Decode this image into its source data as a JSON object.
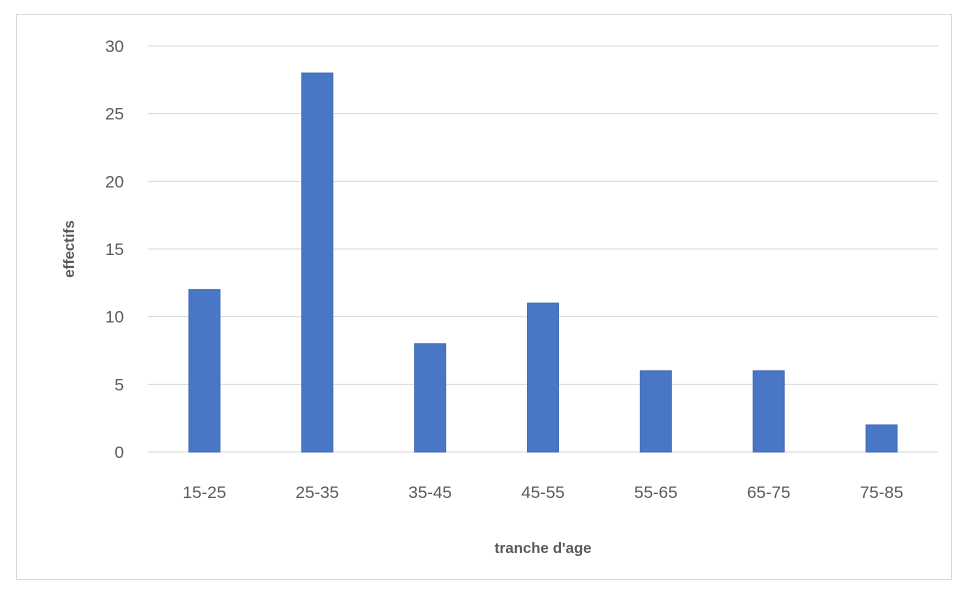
{
  "chart_data": {
    "type": "bar",
    "title": "",
    "xlabel": "tranche d'age",
    "ylabel": "effectifs",
    "categories": [
      "15-25",
      "25-35",
      "35-45",
      "45-55",
      "55-65",
      "65-75",
      "75-85"
    ],
    "values": [
      12,
      28,
      8,
      11,
      6,
      6,
      2
    ],
    "ylim": [
      0,
      30
    ],
    "yticks": [
      0,
      5,
      10,
      15,
      20,
      25,
      30
    ],
    "grid": true,
    "legend": "none",
    "colors": {
      "bar": "#4a76c6",
      "grid": "#d9d9d9",
      "text": "#595959"
    }
  }
}
